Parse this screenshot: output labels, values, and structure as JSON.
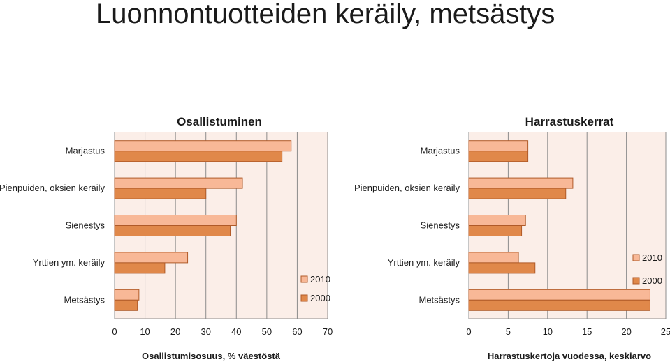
{
  "page_title": "Luonnontuotteiden keräily, metsästys",
  "colors": {
    "series_2010": "#F8B897",
    "series_2000": "#E0884A",
    "bar_stroke": "#B05A28",
    "plot_bg": "#FBEEE8",
    "grid": "#8C8C8C"
  },
  "chart_data": [
    {
      "type": "bar",
      "orientation": "horizontal",
      "title": "Osallistuminen",
      "xlabel": "Osallistumisosuus, % väestöstä",
      "categories": [
        "Marjastus",
        "Pienpuiden, oksien keräily",
        "Sienestys",
        "Yrttien ym. keräily",
        "Metsästys"
      ],
      "series": [
        {
          "name": "2010",
          "values": [
            58,
            42,
            40,
            24,
            8
          ]
        },
        {
          "name": "2000",
          "values": [
            55,
            30,
            38,
            16.5,
            7.5
          ]
        }
      ],
      "xlim": [
        0,
        70
      ],
      "xticks": [
        "0",
        "10",
        "20",
        "30",
        "40",
        "50",
        "60",
        "70"
      ],
      "grid": true,
      "legend_position": "bottom-right"
    },
    {
      "type": "bar",
      "orientation": "horizontal",
      "title": "Harrastuskerrat",
      "xlabel": "Harrastuskertoja vuodessa, keskiarvo",
      "categories": [
        "Marjastus",
        "Pienpuiden, oksien keräily",
        "Sienestys",
        "Yrttien ym. keräily",
        "Metsästys"
      ],
      "series": [
        {
          "name": "2010",
          "values": [
            7.5,
            13.2,
            7.2,
            6.3,
            23
          ]
        },
        {
          "name": "2000",
          "values": [
            7.5,
            12.3,
            6.7,
            8.4,
            23
          ]
        }
      ],
      "xlim": [
        0,
        25
      ],
      "xticks": [
        "0",
        "5",
        "10",
        "15",
        "20",
        "25"
      ],
      "grid": true,
      "legend_position": "right"
    }
  ]
}
